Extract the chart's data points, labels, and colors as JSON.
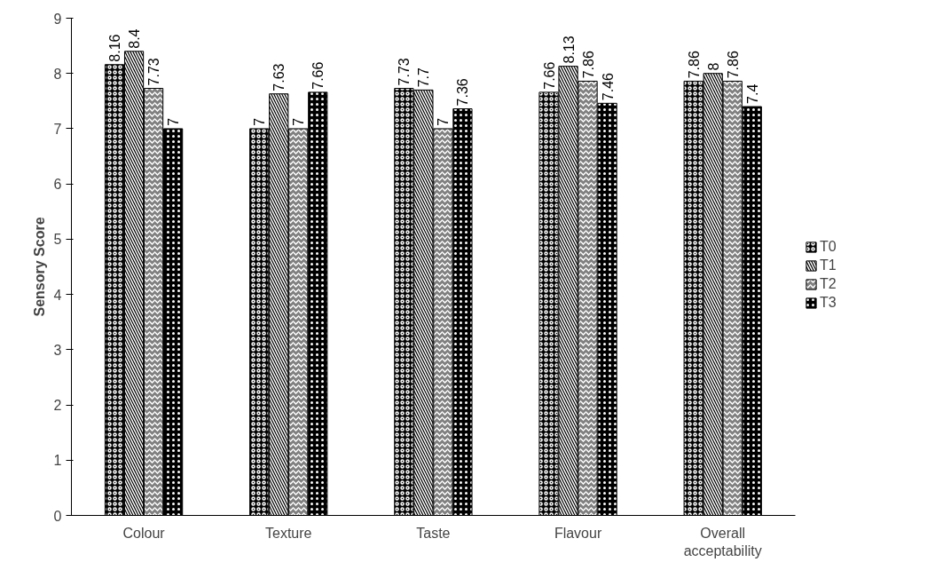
{
  "chart_data": {
    "type": "bar",
    "ylabel": "Sensory Score",
    "categories": [
      "Colour",
      "Texture",
      "Taste",
      "Flavour",
      "Overall acceptability"
    ],
    "series": [
      {
        "name": "T0",
        "color": "#000000",
        "values": [
          8.16,
          7,
          7.73,
          7.66,
          7.86
        ]
      },
      {
        "name": "T1",
        "color": "#000000",
        "values": [
          8.4,
          7.63,
          7.7,
          8.13,
          8
        ]
      },
      {
        "name": "T2",
        "color": "#808080",
        "values": [
          7.73,
          7,
          7,
          7.86,
          7.86
        ]
      },
      {
        "name": "T3",
        "color": "#000000",
        "values": [
          7,
          7.66,
          7.36,
          7.46,
          7.4
        ]
      }
    ],
    "ylim": [
      0,
      9
    ],
    "yticks": [
      0,
      1,
      2,
      3,
      4,
      5,
      6,
      7,
      8,
      9
    ],
    "grid": false,
    "legend": "right",
    "data_labels": true
  }
}
